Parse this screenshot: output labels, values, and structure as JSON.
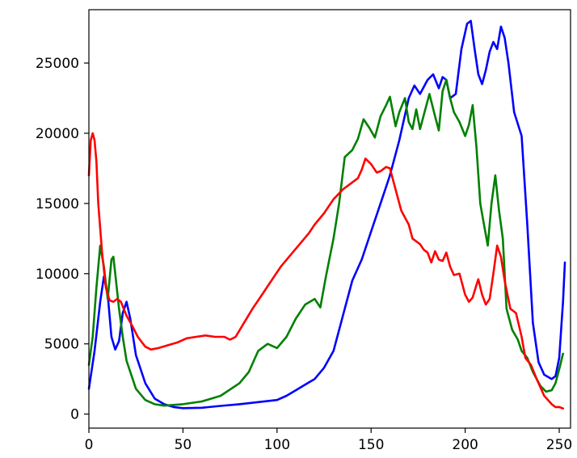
{
  "chart_data": {
    "type": "line",
    "title": "",
    "xlabel": "",
    "ylabel": "",
    "xlim": [
      0,
      256
    ],
    "ylim": [
      -1000,
      28800
    ],
    "grid": false,
    "legend": "none",
    "x_ticks": [
      0,
      50,
      100,
      150,
      200,
      250
    ],
    "x_tick_labels": [
      "0",
      "50",
      "100",
      "150",
      "200",
      "250"
    ],
    "y_ticks": [
      0,
      5000,
      10000,
      15000,
      20000,
      25000
    ],
    "y_tick_labels": [
      "0",
      "5000",
      "10000",
      "15000",
      "20000",
      "25000"
    ],
    "series": [
      {
        "color": "#0000ff",
        "points": [
          [
            0,
            1800
          ],
          [
            3,
            4500
          ],
          [
            6,
            8000
          ],
          [
            8,
            9800
          ],
          [
            10,
            8500
          ],
          [
            12,
            5500
          ],
          [
            14,
            4600
          ],
          [
            16,
            5200
          ],
          [
            18,
            7200
          ],
          [
            20,
            8000
          ],
          [
            22,
            6800
          ],
          [
            25,
            4200
          ],
          [
            30,
            2200
          ],
          [
            35,
            1100
          ],
          [
            40,
            700
          ],
          [
            45,
            500
          ],
          [
            50,
            420
          ],
          [
            60,
            450
          ],
          [
            70,
            580
          ],
          [
            80,
            700
          ],
          [
            90,
            850
          ],
          [
            100,
            1000
          ],
          [
            105,
            1300
          ],
          [
            110,
            1700
          ],
          [
            115,
            2100
          ],
          [
            120,
            2500
          ],
          [
            125,
            3300
          ],
          [
            130,
            4500
          ],
          [
            135,
            7000
          ],
          [
            140,
            9500
          ],
          [
            145,
            11000
          ],
          [
            150,
            13000
          ],
          [
            155,
            15000
          ],
          [
            160,
            17000
          ],
          [
            165,
            19500
          ],
          [
            170,
            22500
          ],
          [
            173,
            23400
          ],
          [
            176,
            22800
          ],
          [
            180,
            23800
          ],
          [
            183,
            24200
          ],
          [
            186,
            23200
          ],
          [
            188,
            24000
          ],
          [
            190,
            23800
          ],
          [
            192,
            22500
          ],
          [
            195,
            22800
          ],
          [
            198,
            26000
          ],
          [
            201,
            27800
          ],
          [
            203,
            28000
          ],
          [
            205,
            26000
          ],
          [
            207,
            24200
          ],
          [
            209,
            23500
          ],
          [
            211,
            24500
          ],
          [
            213,
            25800
          ],
          [
            215,
            26500
          ],
          [
            217,
            26000
          ],
          [
            219,
            27600
          ],
          [
            221,
            26800
          ],
          [
            223,
            25000
          ],
          [
            226,
            21500
          ],
          [
            230,
            19800
          ],
          [
            233,
            13500
          ],
          [
            236,
            6500
          ],
          [
            239,
            3700
          ],
          [
            242,
            2800
          ],
          [
            246,
            2500
          ],
          [
            248,
            2700
          ],
          [
            250,
            4000
          ],
          [
            252,
            8000
          ],
          [
            253,
            10800
          ]
        ]
      },
      {
        "color": "#008000",
        "points": [
          [
            0,
            3500
          ],
          [
            2,
            5500
          ],
          [
            4,
            9000
          ],
          [
            6,
            12000
          ],
          [
            8,
            10500
          ],
          [
            10,
            8200
          ],
          [
            12,
            11000
          ],
          [
            13,
            11200
          ],
          [
            14,
            10000
          ],
          [
            16,
            7500
          ],
          [
            18,
            5500
          ],
          [
            20,
            3800
          ],
          [
            25,
            1800
          ],
          [
            30,
            1000
          ],
          [
            35,
            700
          ],
          [
            40,
            600
          ],
          [
            50,
            700
          ],
          [
            60,
            900
          ],
          [
            70,
            1300
          ],
          [
            80,
            2200
          ],
          [
            85,
            3000
          ],
          [
            90,
            4500
          ],
          [
            95,
            5000
          ],
          [
            100,
            4700
          ],
          [
            105,
            5500
          ],
          [
            110,
            6800
          ],
          [
            115,
            7800
          ],
          [
            120,
            8200
          ],
          [
            123,
            7600
          ],
          [
            126,
            9800
          ],
          [
            130,
            12500
          ],
          [
            133,
            15000
          ],
          [
            136,
            18300
          ],
          [
            140,
            18800
          ],
          [
            143,
            19600
          ],
          [
            146,
            21000
          ],
          [
            149,
            20400
          ],
          [
            152,
            19700
          ],
          [
            155,
            21200
          ],
          [
            158,
            22000
          ],
          [
            160,
            22600
          ],
          [
            163,
            20500
          ],
          [
            165,
            21500
          ],
          [
            168,
            22500
          ],
          [
            170,
            20800
          ],
          [
            172,
            20300
          ],
          [
            174,
            21700
          ],
          [
            176,
            20300
          ],
          [
            178,
            21300
          ],
          [
            181,
            22800
          ],
          [
            184,
            21200
          ],
          [
            186,
            20200
          ],
          [
            188,
            23000
          ],
          [
            190,
            23800
          ],
          [
            192,
            22500
          ],
          [
            194,
            21500
          ],
          [
            197,
            20800
          ],
          [
            200,
            19800
          ],
          [
            202,
            20600
          ],
          [
            204,
            22000
          ],
          [
            206,
            19000
          ],
          [
            208,
            15000
          ],
          [
            210,
            13500
          ],
          [
            212,
            12000
          ],
          [
            214,
            15000
          ],
          [
            216,
            17000
          ],
          [
            218,
            14500
          ],
          [
            220,
            12500
          ],
          [
            222,
            7500
          ],
          [
            225,
            6000
          ],
          [
            228,
            5300
          ],
          [
            230,
            4500
          ],
          [
            233,
            4000
          ],
          [
            236,
            3000
          ],
          [
            240,
            2000
          ],
          [
            243,
            1600
          ],
          [
            246,
            1700
          ],
          [
            248,
            2200
          ],
          [
            250,
            3200
          ],
          [
            252,
            4300
          ]
        ]
      },
      {
        "color": "#ff0000",
        "points": [
          [
            0,
            17000
          ],
          [
            1,
            19500
          ],
          [
            2,
            20000
          ],
          [
            3,
            19500
          ],
          [
            4,
            18000
          ],
          [
            5,
            15000
          ],
          [
            7,
            11500
          ],
          [
            9,
            9000
          ],
          [
            11,
            8100
          ],
          [
            13,
            8000
          ],
          [
            15,
            8200
          ],
          [
            17,
            8000
          ],
          [
            20,
            7000
          ],
          [
            23,
            6300
          ],
          [
            26,
            5500
          ],
          [
            30,
            4800
          ],
          [
            33,
            4600
          ],
          [
            37,
            4700
          ],
          [
            42,
            4900
          ],
          [
            47,
            5100
          ],
          [
            52,
            5400
          ],
          [
            57,
            5500
          ],
          [
            62,
            5600
          ],
          [
            67,
            5500
          ],
          [
            72,
            5500
          ],
          [
            75,
            5300
          ],
          [
            78,
            5500
          ],
          [
            82,
            6400
          ],
          [
            87,
            7500
          ],
          [
            92,
            8500
          ],
          [
            97,
            9500
          ],
          [
            102,
            10500
          ],
          [
            107,
            11300
          ],
          [
            112,
            12100
          ],
          [
            117,
            12900
          ],
          [
            120,
            13500
          ],
          [
            125,
            14300
          ],
          [
            130,
            15300
          ],
          [
            135,
            16000
          ],
          [
            140,
            16500
          ],
          [
            143,
            16800
          ],
          [
            145,
            17400
          ],
          [
            147,
            18200
          ],
          [
            150,
            17800
          ],
          [
            153,
            17200
          ],
          [
            155,
            17300
          ],
          [
            158,
            17600
          ],
          [
            160,
            17500
          ],
          [
            163,
            16000
          ],
          [
            166,
            14500
          ],
          [
            170,
            13500
          ],
          [
            172,
            12500
          ],
          [
            174,
            12300
          ],
          [
            176,
            12100
          ],
          [
            178,
            11700
          ],
          [
            180,
            11500
          ],
          [
            182,
            10800
          ],
          [
            184,
            11600
          ],
          [
            186,
            11000
          ],
          [
            188,
            10900
          ],
          [
            190,
            11500
          ],
          [
            192,
            10500
          ],
          [
            194,
            9900
          ],
          [
            197,
            10000
          ],
          [
            200,
            8500
          ],
          [
            202,
            8000
          ],
          [
            204,
            8300
          ],
          [
            206,
            9200
          ],
          [
            207,
            9600
          ],
          [
            209,
            8500
          ],
          [
            211,
            7800
          ],
          [
            213,
            8200
          ],
          [
            215,
            10000
          ],
          [
            217,
            12000
          ],
          [
            219,
            11200
          ],
          [
            221,
            9500
          ],
          [
            224,
            7500
          ],
          [
            227,
            7200
          ],
          [
            230,
            5500
          ],
          [
            232,
            4000
          ],
          [
            235,
            3500
          ],
          [
            238,
            2500
          ],
          [
            242,
            1300
          ],
          [
            246,
            700
          ],
          [
            248,
            500
          ],
          [
            250,
            500
          ],
          [
            252,
            400
          ]
        ]
      }
    ]
  }
}
